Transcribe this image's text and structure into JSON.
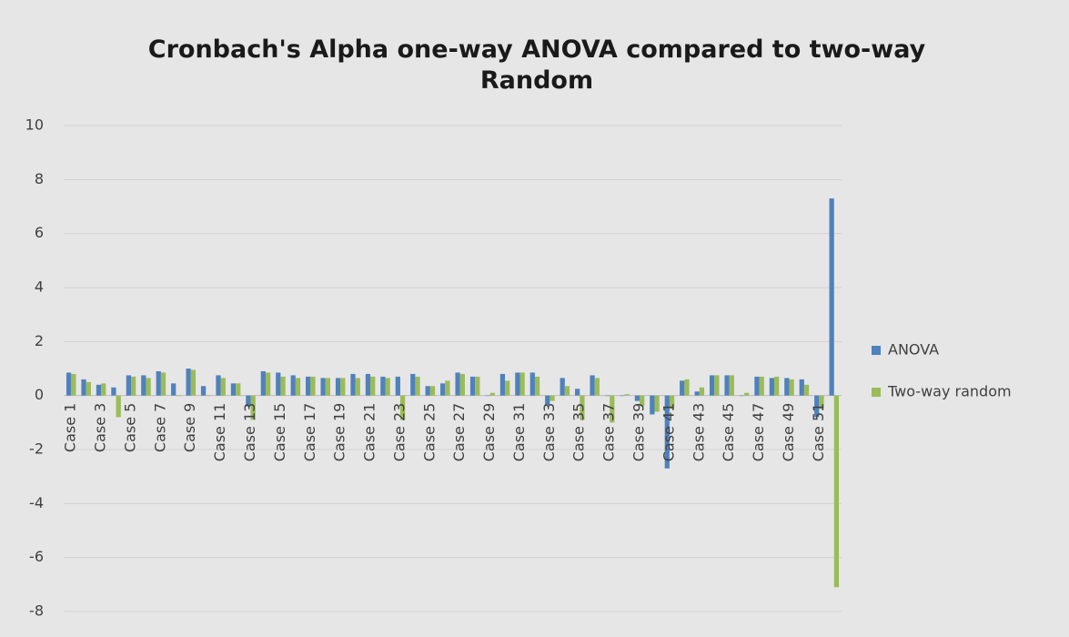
{
  "chart_data": {
    "type": "bar",
    "title": "Cronbach's Alpha one-way ANOVA compared to two-way Random",
    "categories": [
      "Case 1",
      null,
      "Case 3",
      null,
      "Case 5",
      null,
      "Case 7",
      null,
      "Case 9",
      null,
      "Case 11",
      null,
      "Case 13",
      null,
      "Case 15",
      null,
      "Case 17",
      null,
      "Case 19",
      null,
      "Case 21",
      null,
      "Case 23",
      null,
      "Case 25",
      null,
      "Case 27",
      null,
      "Case 29",
      null,
      "Case 31",
      null,
      "Case 33",
      null,
      "Case 35",
      null,
      "Case 37",
      null,
      "Case 39",
      null,
      "Case 41",
      null,
      "Case 43",
      null,
      "Case 45",
      null,
      "Case 47",
      null,
      "Case 49",
      null,
      "Case 51",
      null
    ],
    "series": [
      {
        "name": "ANOVA",
        "color": "#4f81bd",
        "values": [
          0.85,
          0.6,
          0.4,
          0.3,
          0.75,
          0.75,
          0.9,
          0.45,
          1.0,
          0.35,
          0.75,
          0.45,
          -0.4,
          0.9,
          0.85,
          0.75,
          0.7,
          0.65,
          0.65,
          0.8,
          0.8,
          0.7,
          0.7,
          0.8,
          0.35,
          0.45,
          0.85,
          0.7,
          0,
          0.8,
          0.85,
          0.85,
          -0.35,
          0.65,
          0.25,
          0.75,
          0,
          0,
          -0.2,
          -0.7,
          -2.7,
          0.55,
          0.15,
          0.75,
          0.75,
          0,
          0.7,
          0.65,
          0.65,
          0.6,
          -0.8,
          7.3
        ]
      },
      {
        "name": "Two-way random",
        "color": "#9bbb59",
        "values": [
          0.8,
          0.5,
          0.45,
          -0.8,
          0.7,
          0.65,
          0.85,
          0,
          0.95,
          0,
          0.65,
          0.45,
          -0.9,
          0.85,
          0.7,
          0.65,
          0.7,
          0.65,
          0.65,
          0.65,
          0.7,
          0.65,
          -0.9,
          0.7,
          0.35,
          0.55,
          0.8,
          0.7,
          0.1,
          0.55,
          0.85,
          0.7,
          -0.2,
          0.35,
          -0.9,
          0.65,
          -1.0,
          0.05,
          -0.4,
          -0.6,
          -0.5,
          0.6,
          0.3,
          0.75,
          0.75,
          0.1,
          0.7,
          0.7,
          0.6,
          0.4,
          -0.5,
          -7.1
        ]
      }
    ],
    "ylim": [
      -8,
      10
    ],
    "yticks": [
      -8,
      -6,
      -4,
      -2,
      0,
      2,
      4,
      6,
      8,
      10
    ],
    "grid": true,
    "legend": "right"
  }
}
